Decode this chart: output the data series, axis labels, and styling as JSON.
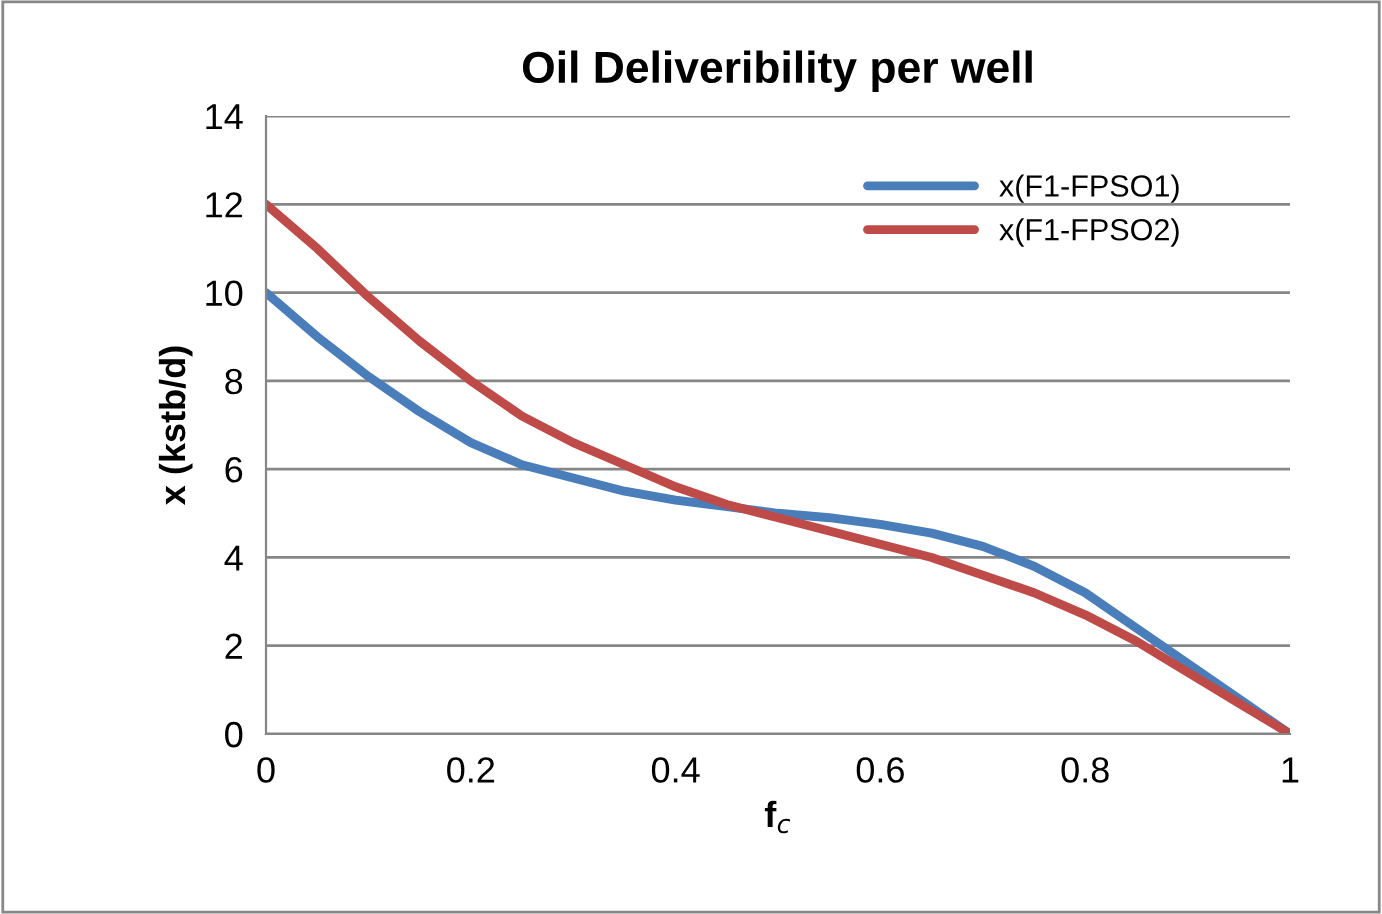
{
  "chart_data": {
    "type": "line",
    "title": "Oil Deliveribility per well",
    "xlabel": "f$_{c}$",
    "ylabel": "x (kstb/d)",
    "x": [
      0,
      0.05,
      0.1,
      0.15,
      0.2,
      0.25,
      0.3,
      0.35,
      0.4,
      0.45,
      0.5,
      0.55,
      0.6,
      0.65,
      0.7,
      0.75,
      0.8,
      0.85,
      0.9,
      0.95,
      1
    ],
    "series": [
      {
        "name": "x(F1-FPSO1)",
        "color": "#4a7ebb",
        "values": [
          10,
          9,
          8.1,
          7.3,
          6.6,
          6.1,
          5.8,
          5.5,
          5.3,
          5.15,
          5.0,
          4.9,
          4.75,
          4.55,
          4.25,
          3.8,
          3.2,
          2.4,
          1.6,
          0.8,
          0
        ]
      },
      {
        "name": "x(F1-FPSO2)",
        "color": "#be4b48",
        "values": [
          12,
          11,
          9.9,
          8.9,
          8.0,
          7.2,
          6.6,
          6.1,
          5.6,
          5.2,
          4.9,
          4.6,
          4.3,
          4.0,
          3.6,
          3.2,
          2.7,
          2.1,
          1.4,
          0.7,
          0
        ]
      }
    ],
    "xlim": [
      0,
      1
    ],
    "xticks": [
      0,
      0.2,
      0.4,
      0.6,
      0.8,
      1
    ],
    "ylim": [
      0,
      14
    ],
    "yticks": [
      0,
      2,
      4,
      6,
      8,
      10,
      12,
      14
    ],
    "grid": "y",
    "legend": "top right",
    "marker": "none",
    "line_style": "solid"
  }
}
